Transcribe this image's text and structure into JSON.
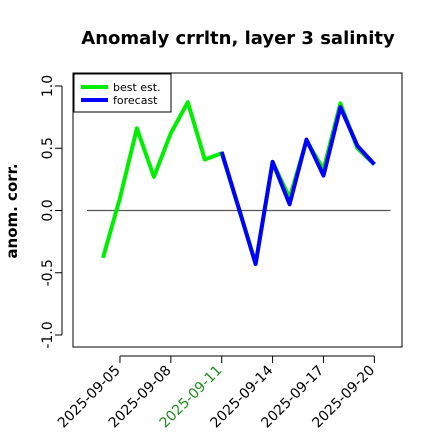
{
  "chart_data": {
    "type": "line",
    "title": "Anomaly crrltn, layer 3 salinity",
    "xlabel": "",
    "ylabel": "anom. corr.",
    "ylim": [
      -1.0,
      1.0
    ],
    "yticks": [
      "-1.0",
      "-0.5",
      "0.0",
      "0.5",
      "1.0"
    ],
    "x": [
      "2025-09-04",
      "2025-09-05",
      "2025-09-06",
      "2025-09-07",
      "2025-09-08",
      "2025-09-09",
      "2025-09-10",
      "2025-09-11",
      "2025-09-12",
      "2025-09-13",
      "2025-09-14",
      "2025-09-15",
      "2025-09-16",
      "2025-09-17",
      "2025-09-18",
      "2025-09-19",
      "2025-09-20"
    ],
    "xticks": [
      "2025-09-05",
      "2025-09-08",
      "2025-09-11",
      "2025-09-14",
      "2025-09-17",
      "2025-09-20"
    ],
    "highlight_tick": "2025-09-11",
    "reference_line": 0.0,
    "legend_position": "top-left",
    "series": [
      {
        "name": "best est.",
        "color": "#00ee00",
        "values": [
          -0.38,
          0.1,
          0.66,
          0.27,
          0.62,
          0.87,
          0.41,
          0.46,
          0.02,
          -0.43,
          0.39,
          0.1,
          0.56,
          0.33,
          0.86,
          0.5,
          0.37
        ]
      },
      {
        "name": "forecast",
        "color": "#0000ff",
        "values": [
          null,
          null,
          null,
          null,
          null,
          null,
          null,
          0.47,
          0.02,
          -0.43,
          0.39,
          0.05,
          0.57,
          0.28,
          0.83,
          0.52,
          0.37
        ]
      }
    ],
    "colors": {
      "highlight_tick": "#228b22",
      "axis": "#000000",
      "reference": "#555555"
    }
  }
}
